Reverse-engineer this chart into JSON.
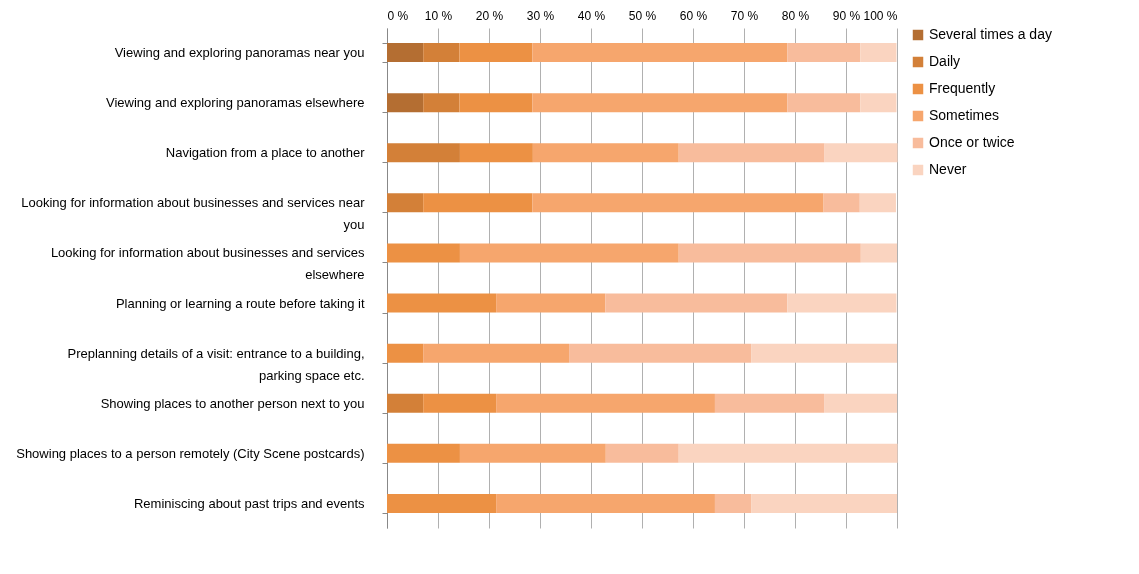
{
  "chart_data": {
    "type": "bar",
    "orientation": "horizontal",
    "stacked": true,
    "categories": [
      "Viewing and exploring panoramas near you",
      "Viewing and exploring panoramas elsewhere",
      "Navigation from a place to another",
      "Looking for information about businesses and services near you",
      "Looking for information about businesses and services elsewhere",
      "Planning or learning a route before taking it",
      "Preplanning details of a visit: entrance to a building, parking space etc.",
      "Showing places to another person next to you",
      "Showing places to a person remotely (City Scene postcards)",
      "Reminiscing about past trips and events"
    ],
    "series": [
      {
        "name": "Several times a day",
        "color": "#b46e32",
        "values": [
          7.1,
          7.1,
          0,
          0,
          0,
          0,
          0,
          0,
          0,
          0
        ]
      },
      {
        "name": "Daily",
        "color": "#d38038",
        "values": [
          7.1,
          7.1,
          14.3,
          7.1,
          0,
          0,
          0,
          7.1,
          0,
          0
        ]
      },
      {
        "name": "Frequently",
        "color": "#ec9144",
        "values": [
          14.3,
          14.3,
          14.3,
          21.4,
          14.3,
          21.4,
          7.1,
          14.3,
          14.3,
          21.4
        ]
      },
      {
        "name": "Sometimes",
        "color": "#f6a66d",
        "values": [
          50.0,
          50.0,
          28.6,
          57.1,
          42.9,
          21.4,
          28.6,
          42.9,
          28.6,
          42.9
        ]
      },
      {
        "name": "Once or twice",
        "color": "#f8bc9c",
        "values": [
          14.3,
          14.3,
          28.6,
          7.1,
          35.7,
          35.7,
          35.7,
          21.4,
          14.3,
          7.1
        ]
      },
      {
        "name": "Never",
        "color": "#fad4c0",
        "values": [
          7.1,
          7.1,
          14.3,
          7.1,
          7.1,
          21.4,
          28.6,
          14.3,
          42.9,
          28.6
        ]
      }
    ],
    "xlim": [
      0,
      100
    ],
    "xticks": [
      {
        "value": 0,
        "label": "0 %"
      },
      {
        "value": 10,
        "label": "10 %"
      },
      {
        "value": 20,
        "label": "20 %"
      },
      {
        "value": 30,
        "label": "30 %"
      },
      {
        "value": 40,
        "label": "40 %"
      },
      {
        "value": 50,
        "label": "50 %"
      },
      {
        "value": 60,
        "label": "60 %"
      },
      {
        "value": 70,
        "label": "70 %"
      },
      {
        "value": 80,
        "label": "80 %"
      },
      {
        "value": 90,
        "label": "90 %"
      },
      {
        "value": 100,
        "label": "100 %"
      }
    ],
    "grid": "x",
    "legend": "right"
  }
}
